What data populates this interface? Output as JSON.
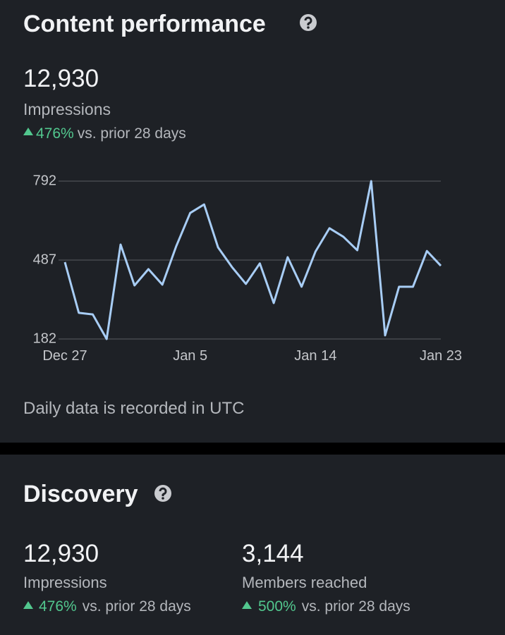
{
  "content_performance": {
    "title": "Content performance",
    "value": "12,930",
    "label": "Impressions",
    "change": "476%",
    "comparison": "vs. prior 28 days",
    "note": "Daily data is recorded in UTC"
  },
  "chart_data": {
    "type": "line",
    "categories": [
      "Dec 27",
      null,
      null,
      null,
      null,
      null,
      null,
      null,
      null,
      "Jan 5",
      null,
      null,
      null,
      null,
      null,
      null,
      null,
      null,
      "Jan 14",
      null,
      null,
      null,
      null,
      null,
      null,
      null,
      null,
      "Jan 23"
    ],
    "values": [
      479,
      283,
      277,
      182,
      547,
      389,
      452,
      392,
      541,
      669,
      702,
      536,
      460,
      395,
      474,
      321,
      498,
      384,
      520,
      610,
      577,
      525,
      792,
      196,
      384,
      384,
      522,
      465
    ],
    "color": "#a8cdf5",
    "ylim": [
      182,
      792
    ],
    "yticks": [
      182,
      487,
      792
    ],
    "grid": true
  },
  "discovery": {
    "title": "Discovery",
    "metrics": [
      {
        "value": "12,930",
        "label": "Impressions",
        "change": "476%",
        "comparison": "vs. prior 28 days"
      },
      {
        "value": "3,144",
        "label": "Members reached",
        "change": "500%",
        "comparison": "vs. prior 28 days"
      }
    ]
  }
}
